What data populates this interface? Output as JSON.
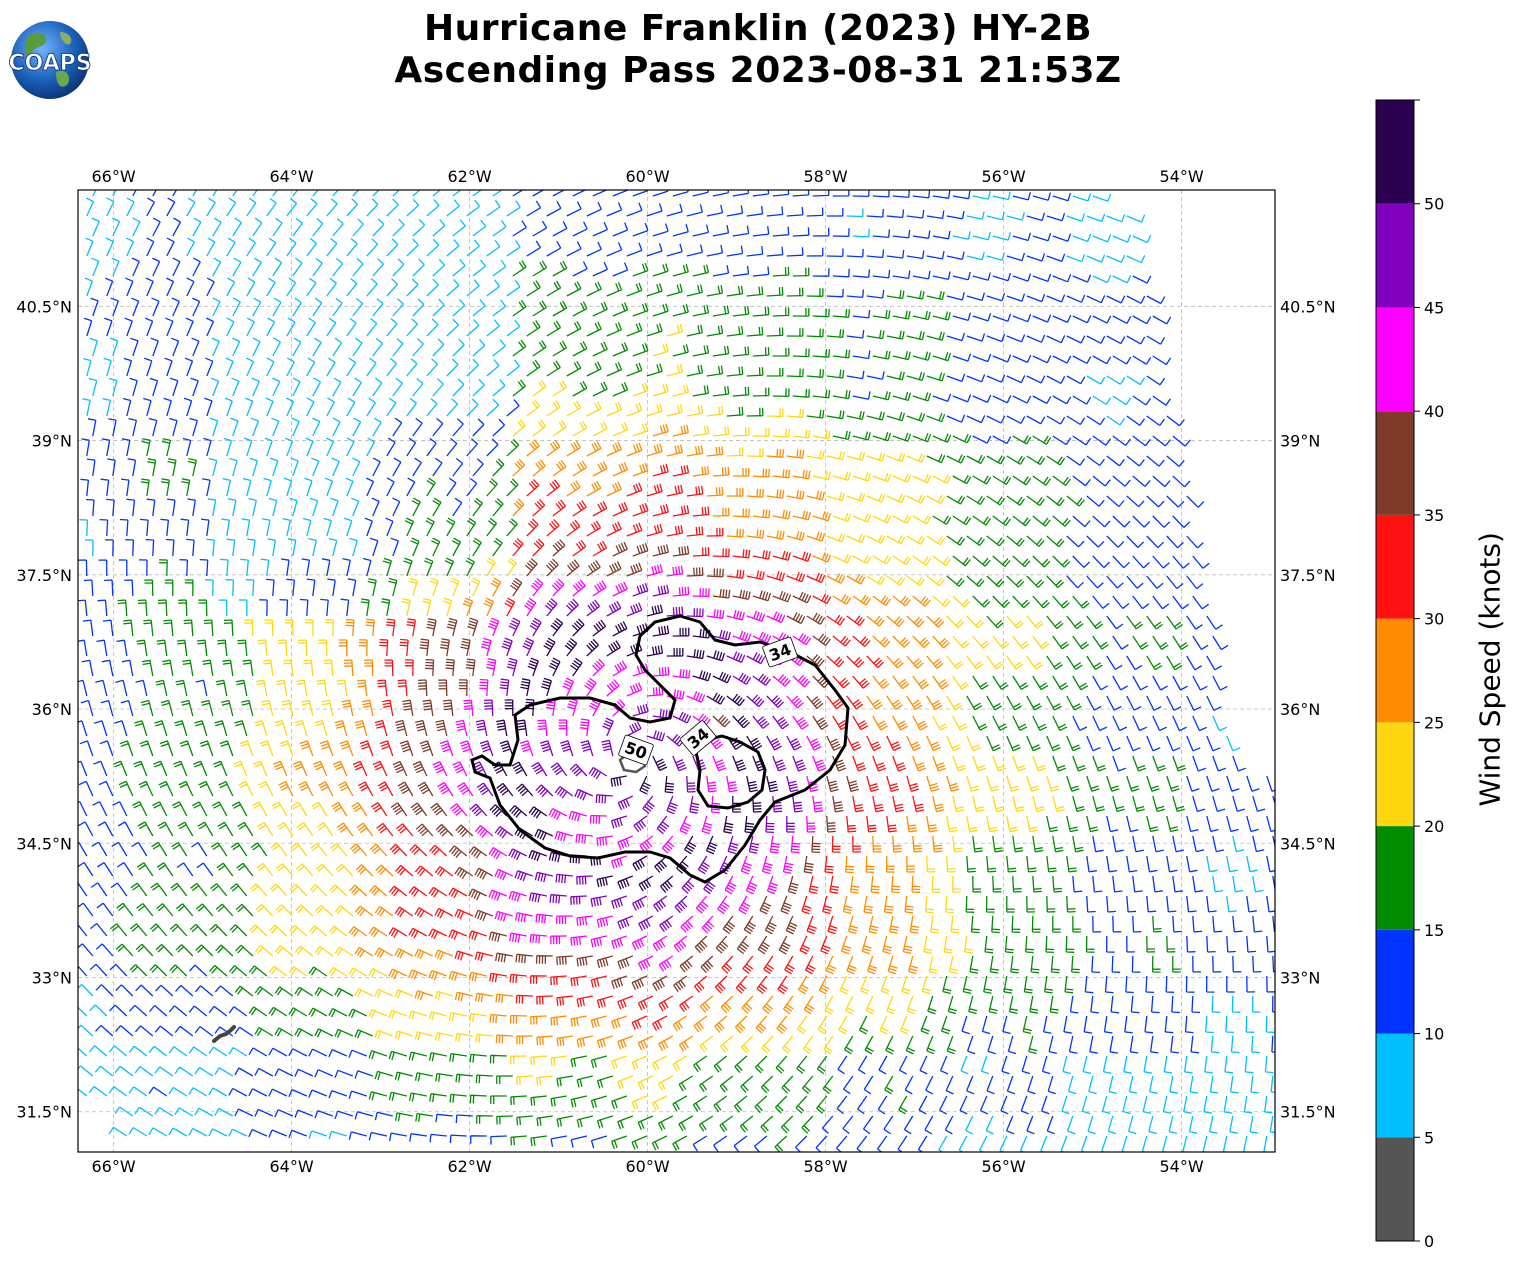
{
  "title_line1": "Hurricane Franklin (2023) HY-2B",
  "title_line2": "Ascending Pass 2023-08-31 21:53Z",
  "logo_text": "COAPS",
  "map": {
    "lon_labels": [
      "66°W",
      "64°W",
      "62°W",
      "60°W",
      "58°W",
      "56°W",
      "54°W"
    ],
    "lon_values": [
      -66,
      -64,
      -62,
      -60,
      -58,
      -56,
      -54
    ],
    "lat_labels": [
      "40.5°N",
      "39°N",
      "37.5°N",
      "36°N",
      "34.5°N",
      "33°N",
      "31.5°N"
    ],
    "lat_values": [
      40.5,
      39,
      37.5,
      36,
      34.5,
      33,
      31.5
    ],
    "lon_range": [
      -66.4,
      -52.95
    ],
    "lat_range": [
      31.05,
      41.8
    ],
    "storm_center": {
      "lon": -60.2,
      "lat": 35.45
    },
    "contour_labels": [
      "34",
      "34",
      "50"
    ]
  },
  "colorbar": {
    "label": "Wind Speed (knots)",
    "tick_labels": [
      "0",
      "5",
      "10",
      "15",
      "20",
      "25",
      "30",
      "35",
      "40",
      "45",
      "50"
    ],
    "tick_values": [
      0,
      5,
      10,
      15,
      20,
      25,
      30,
      35,
      40,
      45,
      50
    ],
    "range": [
      0,
      55
    ],
    "bins": [
      {
        "min": 0,
        "max": 5,
        "color": "#555555"
      },
      {
        "min": 5,
        "max": 10,
        "color": "#00bfff"
      },
      {
        "min": 10,
        "max": 15,
        "color": "#0033ff"
      },
      {
        "min": 15,
        "max": 20,
        "color": "#008c00"
      },
      {
        "min": 20,
        "max": 25,
        "color": "#ffd711"
      },
      {
        "min": 25,
        "max": 30,
        "color": "#ff8c00"
      },
      {
        "min": 30,
        "max": 35,
        "color": "#ff1111"
      },
      {
        "min": 35,
        "max": 40,
        "color": "#7f3a28"
      },
      {
        "min": 40,
        "max": 45,
        "color": "#ff00ff"
      },
      {
        "min": 45,
        "max": 50,
        "color": "#8000c0"
      },
      {
        "min": 50,
        "max": 55,
        "color": "#2c0050"
      }
    ]
  }
}
